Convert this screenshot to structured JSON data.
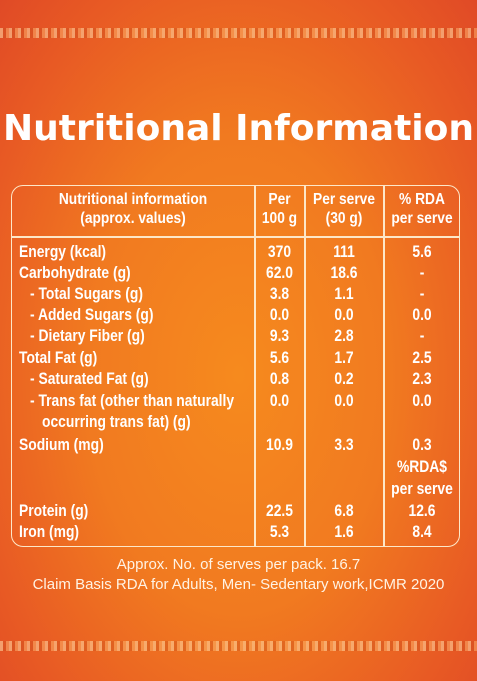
{
  "title": "Nutritional Information",
  "headers": {
    "col1_line1": "Nutritional information",
    "col1_line2": "(approx. values)",
    "col2_line1": "Per",
    "col2_line2": "100 g",
    "col3_line1": "Per serve",
    "col3_line2": "(30 g)",
    "col4_line1": "% RDA",
    "col4_line2": "per serve"
  },
  "rows": [
    {
      "name": "Energy (kcal)",
      "per100": "370",
      "serve": "111",
      "rda": "5.6"
    },
    {
      "name": "Carbohydrate (g)",
      "per100": "62.0",
      "serve": "18.6",
      "rda": "-"
    },
    {
      "name": "- Total Sugars (g)",
      "per100": "3.8",
      "serve": "1.1",
      "rda": "-"
    },
    {
      "name": "- Added Sugars (g)",
      "per100": "0.0",
      "serve": "0.0",
      "rda": "0.0"
    },
    {
      "name": "- Dietary Fiber (g)",
      "per100": "9.3",
      "serve": "2.8",
      "rda": "-"
    },
    {
      "name": "Total Fat (g)",
      "per100": "5.6",
      "serve": "1.7",
      "rda": "2.5"
    },
    {
      "name": "- Saturated Fat (g)",
      "per100": "0.8",
      "serve": "0.2",
      "rda": "2.3"
    },
    {
      "name": "- Trans fat (other than naturally",
      "per100": "0.0",
      "serve": "0.0",
      "rda": "0.0"
    },
    {
      "name": "occurring trans fat) (g)",
      "per100": "",
      "serve": "",
      "rda": ""
    },
    {
      "name": "Sodium (mg)",
      "per100": "10.9",
      "serve": "3.3",
      "rda": "0.3"
    },
    {
      "name": "",
      "per100": "",
      "serve": "",
      "rda": "%RDA$"
    },
    {
      "name": "",
      "per100": "",
      "serve": "",
      "rda": "per serve"
    },
    {
      "name": "Protein (g)",
      "per100": "22.5",
      "serve": "6.8",
      "rda": "12.6"
    },
    {
      "name": "Iron (mg)",
      "per100": "5.3",
      "serve": "1.6",
      "rda": "8.4"
    }
  ],
  "footer": {
    "serves": "Approx. No. of serves per pack. 16.7",
    "claim": "Claim Basis RDA for Adults, Men- Sedentary work,ICMR 2020"
  }
}
